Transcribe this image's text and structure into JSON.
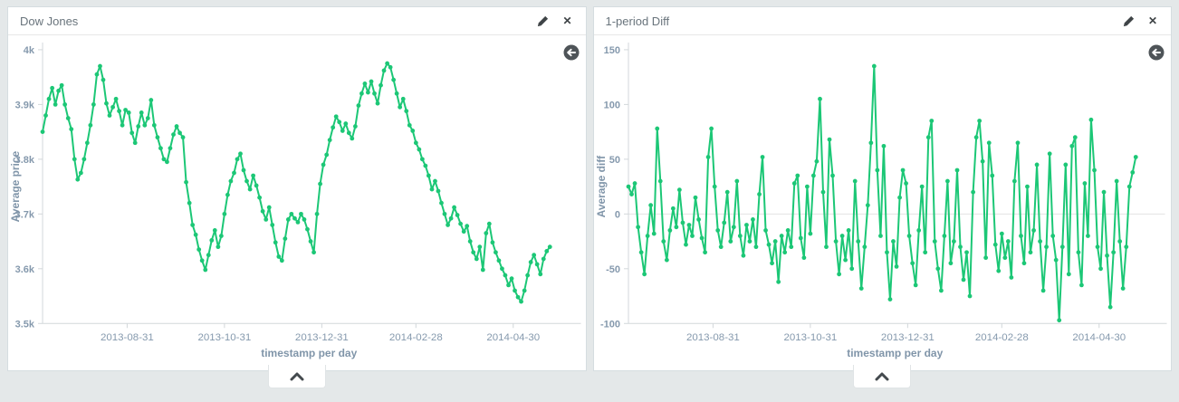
{
  "page": {
    "background": "#e4e8e9"
  },
  "colors": {
    "series_line": "#1cc776",
    "axis_text": "#8599ad",
    "axis_line": "#d2d7da",
    "zero_line": "#e3e3e3",
    "panel_title_text": "#69747c",
    "icon": "#3f4447",
    "legend_toggle_bg": "#4e5458",
    "legend_toggle_arrow": "#ffffff"
  },
  "icons": {
    "edit": "pencil-icon",
    "close": "close-icon",
    "legend_toggle": "back-arrow-icon",
    "spy_toggle": "chevron-up-icon"
  },
  "panels": [
    {
      "title": "Dow Jones",
      "edit_label": "edit",
      "close_label": "close",
      "chart_data": {
        "type": "line",
        "title": "Dow Jones",
        "xlabel": "timestamp per day",
        "ylabel": "Average price",
        "ylim": [
          3500,
          4000
        ],
        "y_ticks": [
          {
            "v": 4000,
            "label": "4k"
          },
          {
            "v": 3900,
            "label": "3.9k"
          },
          {
            "v": 3800,
            "label": "3.8k"
          },
          {
            "v": 3700,
            "label": "3.7k"
          },
          {
            "v": 3600,
            "label": "3.6k"
          },
          {
            "v": 3500,
            "label": "3.5k"
          }
        ],
        "x_domain_days": [
          0,
          334
        ],
        "x_ticks": [
          {
            "day": 53,
            "label": "2013-08-31"
          },
          {
            "day": 114,
            "label": "2013-10-31"
          },
          {
            "day": 175,
            "label": "2013-12-31"
          },
          {
            "day": 234,
            "label": "2014-02-28"
          },
          {
            "day": 295,
            "label": "2014-04-30"
          }
        ],
        "x_step_days": 2,
        "zero_line": false,
        "grid": false,
        "legend_position": "none",
        "values": [
          3850,
          3880,
          3910,
          3930,
          3900,
          3925,
          3935,
          3900,
          3875,
          3855,
          3800,
          3763,
          3775,
          3800,
          3830,
          3862,
          3900,
          3955,
          3970,
          3945,
          3902,
          3880,
          3895,
          3910,
          3888,
          3862,
          3890,
          3885,
          3848,
          3830,
          3860,
          3885,
          3862,
          3875,
          3908,
          3862,
          3840,
          3820,
          3800,
          3795,
          3820,
          3845,
          3860,
          3848,
          3840,
          3758,
          3720,
          3680,
          3662,
          3635,
          3615,
          3598,
          3625,
          3652,
          3670,
          3640,
          3660,
          3700,
          3735,
          3760,
          3775,
          3800,
          3810,
          3780,
          3760,
          3745,
          3770,
          3752,
          3730,
          3705,
          3690,
          3712,
          3680,
          3648,
          3622,
          3615,
          3655,
          3690,
          3700,
          3692,
          3685,
          3700,
          3690,
          3672,
          3650,
          3630,
          3700,
          3755,
          3790,
          3808,
          3835,
          3858,
          3878,
          3868,
          3852,
          3865,
          3848,
          3838,
          3860,
          3898,
          3920,
          3938,
          3922,
          3942,
          3920,
          3902,
          3935,
          3962,
          3975,
          3968,
          3945,
          3920,
          3895,
          3910,
          3888,
          3862,
          3852,
          3830,
          3818,
          3800,
          3788,
          3770,
          3745,
          3760,
          3742,
          3720,
          3700,
          3680,
          3692,
          3712,
          3698,
          3682,
          3668,
          3678,
          3650,
          3630,
          3618,
          3640,
          3598,
          3665,
          3682,
          3648,
          3630,
          3615,
          3600,
          3588,
          3570,
          3582,
          3560,
          3548,
          3540,
          3560,
          3588,
          3612,
          3625,
          3608,
          3590,
          3618,
          3632,
          3640
        ]
      }
    },
    {
      "title": "1-period Diff",
      "edit_label": "edit",
      "close_label": "close",
      "chart_data": {
        "type": "line",
        "title": "1-period Diff",
        "xlabel": "timestamp per day",
        "ylabel": "Average diff",
        "ylim": [
          -100,
          150
        ],
        "y_ticks": [
          {
            "v": 150,
            "label": "150"
          },
          {
            "v": 100,
            "label": "100"
          },
          {
            "v": 50,
            "label": "50"
          },
          {
            "v": 0,
            "label": "0"
          },
          {
            "v": -50,
            "label": "-50"
          },
          {
            "v": -100,
            "label": "-100"
          }
        ],
        "x_domain_days": [
          0,
          334
        ],
        "x_ticks": [
          {
            "day": 53,
            "label": "2013-08-31"
          },
          {
            "day": 114,
            "label": "2013-10-31"
          },
          {
            "day": 175,
            "label": "2013-12-31"
          },
          {
            "day": 234,
            "label": "2014-02-28"
          },
          {
            "day": 295,
            "label": "2014-04-30"
          }
        ],
        "x_step_days": 2,
        "zero_line": true,
        "grid": false,
        "legend_position": "none",
        "values": [
          25,
          18,
          28,
          -12,
          -35,
          -55,
          -20,
          8,
          -18,
          78,
          30,
          -25,
          -42,
          -15,
          5,
          -12,
          22,
          -8,
          -28,
          -10,
          -20,
          15,
          -5,
          -22,
          -35,
          52,
          78,
          25,
          -15,
          -30,
          -8,
          20,
          -25,
          -12,
          30,
          -20,
          -38,
          -10,
          -25,
          -5,
          -30,
          18,
          52,
          -15,
          -28,
          -45,
          -25,
          -62,
          -20,
          -35,
          -15,
          -30,
          28,
          35,
          -22,
          -40,
          25,
          -18,
          35,
          48,
          105,
          20,
          -30,
          68,
          35,
          -25,
          -55,
          -20,
          -42,
          -15,
          -50,
          30,
          -25,
          -68,
          -30,
          8,
          65,
          135,
          40,
          -20,
          62,
          -35,
          -78,
          -25,
          -48,
          15,
          40,
          28,
          -20,
          -45,
          -65,
          -15,
          25,
          -35,
          70,
          85,
          -25,
          -50,
          -70,
          -20,
          30,
          -45,
          -25,
          40,
          -30,
          -60,
          -35,
          -75,
          20,
          70,
          85,
          48,
          -40,
          65,
          35,
          -28,
          -52,
          -18,
          -40,
          -25,
          -58,
          30,
          65,
          -20,
          -45,
          25,
          -35,
          -15,
          45,
          -25,
          -70,
          -30,
          55,
          -20,
          -42,
          -97,
          -30,
          45,
          -55,
          62,
          70,
          -35,
          -65,
          28,
          -20,
          86,
          40,
          -30,
          -50,
          20,
          -38,
          -85,
          -35,
          30,
          -25,
          -68,
          -30,
          25,
          38,
          52
        ]
      }
    }
  ]
}
